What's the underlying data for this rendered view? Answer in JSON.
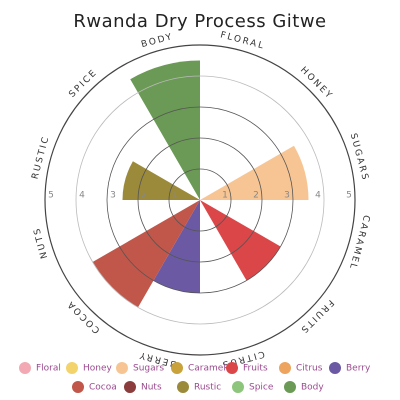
{
  "chart_data": {
    "type": "polar-area",
    "title": "Rwanda Dry Process Gitwe",
    "categories": [
      "Floral",
      "Honey",
      "Sugars",
      "Caramel",
      "Fruits",
      "Citrus",
      "Berry",
      "Cocoa",
      "Nuts",
      "Rustic",
      "Spice",
      "Body"
    ],
    "values": [
      0,
      0,
      3.5,
      0,
      3,
      0,
      3,
      4,
      0,
      2.5,
      0,
      4.5
    ],
    "colors": [
      "#f2a9b3",
      "#f3d36b",
      "#f7c594",
      "#c9a23c",
      "#db4649",
      "#eda45e",
      "#6b5aa3",
      "#c0574a",
      "#8b3c3c",
      "#9c8a3b",
      "#8ec57c",
      "#6a9a55"
    ],
    "ylim": [
      0,
      5
    ],
    "yticks": [
      1,
      2,
      3,
      4,
      5
    ],
    "grid": true
  }
}
